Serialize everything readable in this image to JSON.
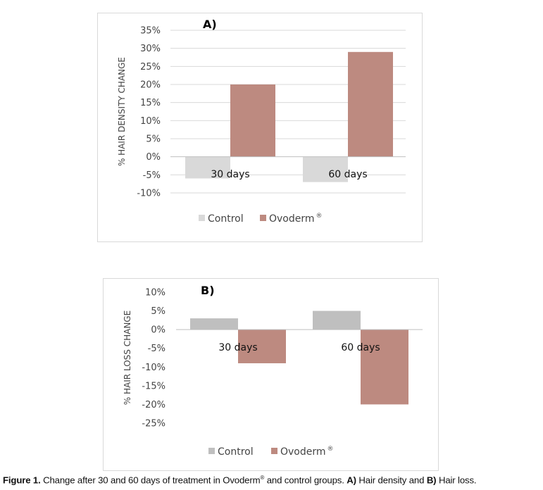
{
  "chart_data": [
    {
      "type": "bar",
      "title": "A)",
      "ylabel": "% HAIR DENSITY CHANGE",
      "categories": [
        "30 days",
        "60 days"
      ],
      "ylim": [
        -10,
        35
      ],
      "yticks": [
        -10,
        -5,
        0,
        5,
        10,
        15,
        20,
        25,
        30,
        35
      ],
      "ytick_labels": [
        "-10%",
        "-5%",
        "0%",
        "5%",
        "10%",
        "15%",
        "20%",
        "25%",
        "30%",
        "35%"
      ],
      "series": [
        {
          "name": "Control",
          "color": "#d9d9d9",
          "values": [
            -6,
            -7
          ]
        },
        {
          "name": "Ovoderm",
          "name_superscript": "®",
          "color": "#bd8a80",
          "values": [
            20,
            29
          ]
        }
      ],
      "grid": true,
      "legend": "bottom"
    },
    {
      "type": "bar",
      "title": "B)",
      "ylabel": "% HAIR LOSS CHANGE",
      "categories": [
        "30 days",
        "60 days"
      ],
      "ylim": [
        -25,
        10
      ],
      "yticks": [
        -25,
        -20,
        -15,
        -10,
        -5,
        0,
        5,
        10
      ],
      "ytick_labels": [
        "-25%",
        "-20%",
        "-15%",
        "-10%",
        "-5%",
        "0%",
        "5%",
        "10%"
      ],
      "series": [
        {
          "name": "Control",
          "color": "#bfbfbf",
          "values": [
            3,
            5
          ]
        },
        {
          "name": "Ovoderm",
          "name_superscript": "®",
          "color": "#bd8a80",
          "values": [
            -9,
            -20
          ]
        }
      ],
      "grid": false,
      "legend": "bottom"
    }
  ],
  "caption": {
    "label": "Figure 1.",
    "text_1": " Change after 30 and 60 days of treatment in Ovoderm",
    "sup": "®",
    "text_2": " and control groups. ",
    "a": "A)",
    "text_3": " Hair density and ",
    "b": "B)",
    "text_4": " Hair loss."
  }
}
